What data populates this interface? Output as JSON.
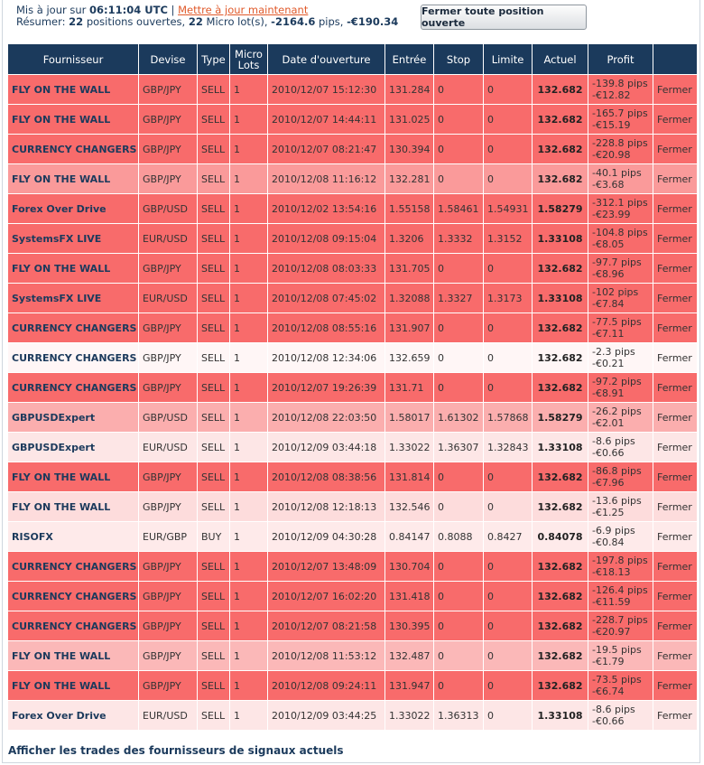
{
  "header": {
    "updated_prefix": "Mis à jour sur",
    "updated_time": "06:11:04 UTC",
    "separator": "|",
    "refresh_link": "Mettre à jour maintenant",
    "summary_prefix": "Résumer:",
    "positions_count": "22",
    "positions_text": "positions ouvertes,",
    "lots_count": "22",
    "lots_text": "Micro lot(s),",
    "pips_total": "-2164.6",
    "pips_text": "pips,",
    "profit_total": "-€190.34",
    "close_all_button": "Fermer toute position ouverte"
  },
  "table": {
    "columns": [
      "Fournisseur",
      "Devise",
      "Type",
      "Micro Lots",
      "Date d'ouverture",
      "Entrée",
      "Stop",
      "Limite",
      "Actuel",
      "Profit",
      ""
    ],
    "rows": [
      [
        "FLY ON THE WALL",
        "GBP/JPY",
        "SELL",
        "1",
        "2010/12/07 15:12:30",
        "131.284",
        "0",
        "0",
        "132.682",
        "-139.8 pips",
        "-€12.82",
        "Fermer"
      ],
      [
        "FLY ON THE WALL",
        "GBP/JPY",
        "SELL",
        "1",
        "2010/12/07 14:44:11",
        "131.025",
        "0",
        "0",
        "132.682",
        "-165.7 pips",
        "-€15.19",
        "Fermer"
      ],
      [
        "CURRENCY CHANGERS",
        "GBP/JPY",
        "SELL",
        "1",
        "2010/12/07 08:21:47",
        "130.394",
        "0",
        "0",
        "132.682",
        "-228.8 pips",
        "-€20.98",
        "Fermer"
      ],
      [
        "FLY ON THE WALL",
        "GBP/JPY",
        "SELL",
        "1",
        "2010/12/08 11:16:12",
        "132.281",
        "0",
        "0",
        "132.682",
        "-40.1 pips",
        "-€3.68",
        "Fermer"
      ],
      [
        "Forex Over Drive",
        "GBP/USD",
        "SELL",
        "1",
        "2010/12/02 13:54:16",
        "1.55158",
        "1.58461",
        "1.54931",
        "1.58279",
        "-312.1 pips",
        "-€23.99",
        "Fermer"
      ],
      [
        "SystemsFX LIVE",
        "EUR/USD",
        "SELL",
        "1",
        "2010/12/08 09:15:04",
        "1.3206",
        "1.3332",
        "1.3152",
        "1.33108",
        "-104.8 pips",
        "-€8.05",
        "Fermer"
      ],
      [
        "FLY ON THE WALL",
        "GBP/JPY",
        "SELL",
        "1",
        "2010/12/08 08:03:33",
        "131.705",
        "0",
        "0",
        "132.682",
        "-97.7 pips",
        "-€8.96",
        "Fermer"
      ],
      [
        "SystemsFX LIVE",
        "EUR/USD",
        "SELL",
        "1",
        "2010/12/08 07:45:02",
        "1.32088",
        "1.3327",
        "1.3173",
        "1.33108",
        "-102 pips",
        "-€7.84",
        "Fermer"
      ],
      [
        "CURRENCY CHANGERS",
        "GBP/JPY",
        "SELL",
        "1",
        "2010/12/08 08:55:16",
        "131.907",
        "0",
        "0",
        "132.682",
        "-77.5 pips",
        "-€7.11",
        "Fermer"
      ],
      [
        "CURRENCY CHANGERS",
        "GBP/JPY",
        "SELL",
        "1",
        "2010/12/08 12:34:06",
        "132.659",
        "0",
        "0",
        "132.682",
        "-2.3 pips",
        "-€0.21",
        "Fermer"
      ],
      [
        "CURRENCY CHANGERS",
        "GBP/JPY",
        "SELL",
        "1",
        "2010/12/07 19:26:39",
        "131.71",
        "0",
        "0",
        "132.682",
        "-97.2 pips",
        "-€8.91",
        "Fermer"
      ],
      [
        "GBPUSDExpert",
        "GBP/USD",
        "SELL",
        "1",
        "2010/12/08 22:03:50",
        "1.58017",
        "1.61302",
        "1.57868",
        "1.58279",
        "-26.2 pips",
        "-€2.01",
        "Fermer"
      ],
      [
        "GBPUSDExpert",
        "EUR/USD",
        "SELL",
        "1",
        "2010/12/09 03:44:18",
        "1.33022",
        "1.36307",
        "1.32843",
        "1.33108",
        "-8.6 pips",
        "-€0.66",
        "Fermer"
      ],
      [
        "FLY ON THE WALL",
        "GBP/JPY",
        "SELL",
        "1",
        "2010/12/08 08:38:56",
        "131.814",
        "0",
        "0",
        "132.682",
        "-86.8 pips",
        "-€7.96",
        "Fermer"
      ],
      [
        "FLY ON THE WALL",
        "GBP/JPY",
        "SELL",
        "1",
        "2010/12/08 12:18:13",
        "132.546",
        "0",
        "0",
        "132.682",
        "-13.6 pips",
        "-€1.25",
        "Fermer"
      ],
      [
        "RISOFX",
        "EUR/GBP",
        "BUY",
        "1",
        "2010/12/09 04:30:28",
        "0.84147",
        "0.8088",
        "0.8427",
        "0.84078",
        "-6.9 pips",
        "-€0.84",
        "Fermer"
      ],
      [
        "CURRENCY CHANGERS",
        "GBP/JPY",
        "SELL",
        "1",
        "2010/12/07 13:48:09",
        "130.704",
        "0",
        "0",
        "132.682",
        "-197.8 pips",
        "-€18.13",
        "Fermer"
      ],
      [
        "CURRENCY CHANGERS",
        "GBP/JPY",
        "SELL",
        "1",
        "2010/12/07 16:02:20",
        "131.418",
        "0",
        "0",
        "132.682",
        "-126.4 pips",
        "-€11.59",
        "Fermer"
      ],
      [
        "CURRENCY CHANGERS",
        "GBP/JPY",
        "SELL",
        "1",
        "2010/12/07 08:21:58",
        "130.395",
        "0",
        "0",
        "132.682",
        "-228.7 pips",
        "-€20.97",
        "Fermer"
      ],
      [
        "FLY ON THE WALL",
        "GBP/JPY",
        "SELL",
        "1",
        "2010/12/08 11:53:12",
        "132.487",
        "0",
        "0",
        "132.682",
        "-19.5 pips",
        "-€1.79",
        "Fermer"
      ],
      [
        "FLY ON THE WALL",
        "GBP/JPY",
        "SELL",
        "1",
        "2010/12/08 09:24:11",
        "131.947",
        "0",
        "0",
        "132.682",
        "-73.5 pips",
        "-€6.74",
        "Fermer"
      ],
      [
        "Forex Over Drive",
        "EUR/USD",
        "SELL",
        "1",
        "2010/12/09 03:44:25",
        "1.33022",
        "1.36313",
        "0",
        "1.33108",
        "-8.6 pips",
        "-€0.66",
        "Fermer"
      ]
    ],
    "row_colors": [
      "#f86b6b",
      "#f86b6b",
      "#f86b6b",
      "#fa9a9a",
      "#f86b6b",
      "#f86b6b",
      "#f86b6b",
      "#f86b6b",
      "#f86b6b",
      "#fff6f6",
      "#f86b6b",
      "#fbaeae",
      "#fde6e6",
      "#f86b6b",
      "#fddcdc",
      "#feeaea",
      "#f86b6b",
      "#f86b6b",
      "#f86b6b",
      "#fbb8b8",
      "#f86b6b",
      "#fde6e6"
    ]
  },
  "footer": {
    "link": "Afficher les trades des fournisseurs de signaux actuels"
  }
}
